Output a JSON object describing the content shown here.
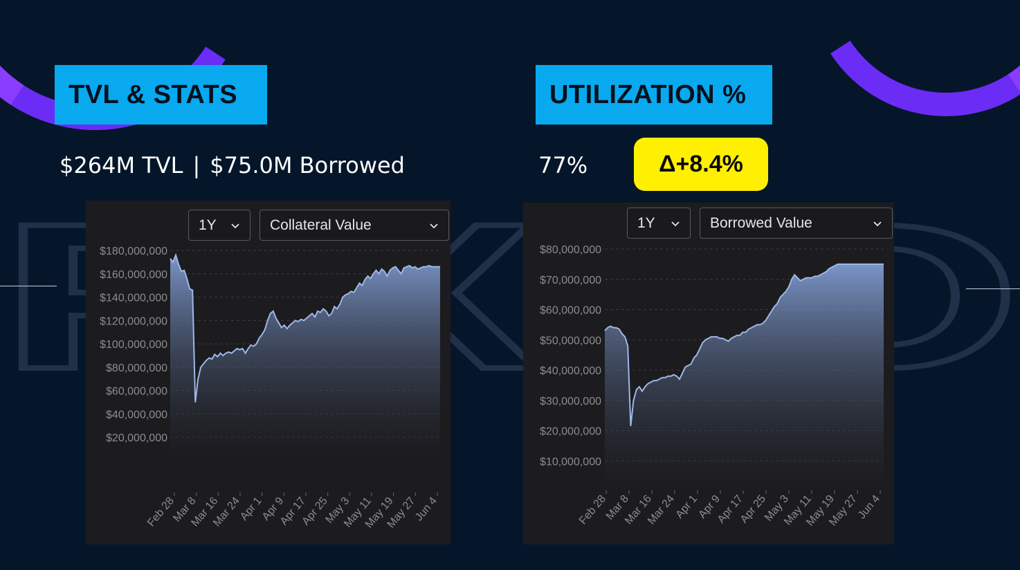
{
  "headers": {
    "left": "TVL & STATS",
    "right": "UTILIZATION %"
  },
  "stats": {
    "tvl": "$264M TVL",
    "separator": "|",
    "borrowed": "$75.0M Borrowed",
    "utilization": "77%",
    "delta": "Δ+8.4%"
  },
  "background_text": "FIXED",
  "colors": {
    "background": "#06162a",
    "header_box": "#08a9ef",
    "delta_badge": "#ffef00",
    "arc": "#8a3dff",
    "panel": "#1c1c1f",
    "line": "#9fb8e8"
  },
  "chart_data": [
    {
      "type": "area",
      "controls": {
        "range": "1Y",
        "metric": "Collateral Value"
      },
      "x_ticks": [
        "Feb 28",
        "Mar 8",
        "Mar 16",
        "Mar 24",
        "Apr 1",
        "Apr 9",
        "Apr 17",
        "Apr 25",
        "May 3",
        "May 11",
        "May 19",
        "May 27",
        "Jun 4"
      ],
      "y_ticks": [
        "$180,000,000",
        "$160,000,000",
        "$140,000,000",
        "$120,000,000",
        "$100,000,000",
        "$80,000,000",
        "$60,000,000",
        "$40,000,000",
        "$20,000,000"
      ],
      "ylim": [
        0,
        180000000
      ],
      "grid": true,
      "series": [
        {
          "x": [
            0,
            1,
            2,
            3,
            4,
            5,
            6,
            7,
            8,
            9,
            10,
            11,
            12,
            13,
            14,
            15,
            16,
            17,
            18,
            19,
            20,
            21,
            22,
            23,
            24,
            25,
            26,
            27,
            28,
            29,
            30,
            31,
            32,
            33,
            34,
            35,
            36,
            37,
            38,
            39,
            40,
            41,
            42,
            43,
            44,
            45,
            46,
            47,
            48,
            49,
            50,
            51,
            52,
            53,
            54,
            55,
            56,
            57,
            58,
            59,
            60,
            61,
            62,
            63,
            64,
            65,
            66,
            67,
            68,
            69,
            70,
            71,
            72,
            73,
            74,
            75,
            76,
            77,
            78,
            79,
            80,
            81,
            82,
            83,
            84,
            85,
            86,
            87,
            88,
            89,
            90,
            91,
            92,
            93,
            94,
            95,
            96,
            97
          ],
          "values": [
            173000000,
            170000000,
            176000000,
            168000000,
            162000000,
            163000000,
            156000000,
            147000000,
            146000000,
            50000000,
            70000000,
            80000000,
            83000000,
            86000000,
            88000000,
            87000000,
            91000000,
            89000000,
            92000000,
            90000000,
            92000000,
            93000000,
            92000000,
            94000000,
            96000000,
            95000000,
            96000000,
            92000000,
            96000000,
            99000000,
            98000000,
            100000000,
            105000000,
            108000000,
            112000000,
            120000000,
            126000000,
            128000000,
            122000000,
            118000000,
            114000000,
            116000000,
            113000000,
            116000000,
            118000000,
            120000000,
            119000000,
            121000000,
            120000000,
            122000000,
            124000000,
            126000000,
            123000000,
            128000000,
            127000000,
            130000000,
            128000000,
            124000000,
            126000000,
            132000000,
            130000000,
            134000000,
            140000000,
            142000000,
            143000000,
            145000000,
            144000000,
            148000000,
            152000000,
            150000000,
            155000000,
            158000000,
            156000000,
            160000000,
            163000000,
            160000000,
            164000000,
            162000000,
            158000000,
            163000000,
            165000000,
            166000000,
            163000000,
            160000000,
            165000000,
            166000000,
            167000000,
            165000000,
            166000000,
            164000000,
            165000000,
            166000000,
            166000000,
            167000000,
            166000000,
            166000000,
            166000000,
            166000000
          ]
        }
      ]
    },
    {
      "type": "area",
      "controls": {
        "range": "1Y",
        "metric": "Borrowed Value"
      },
      "x_ticks": [
        "Feb 28",
        "Mar 8",
        "Mar 16",
        "Mar 24",
        "Apr 1",
        "Apr 9",
        "Apr 17",
        "Apr 25",
        "May 3",
        "May 11",
        "May 19",
        "May 27",
        "Jun 4"
      ],
      "y_ticks": [
        "$80,000,000",
        "$70,000,000",
        "$60,000,000",
        "$50,000,000",
        "$40,000,000",
        "$30,000,000",
        "$20,000,000",
        "$10,000,000"
      ],
      "ylim": [
        0,
        80000000
      ],
      "grid": true,
      "series": [
        {
          "x": [
            0,
            1,
            2,
            3,
            4,
            5,
            6,
            7,
            8,
            9,
            10,
            11,
            12,
            13,
            14,
            15,
            16,
            17,
            18,
            19,
            20,
            21,
            22,
            23,
            24,
            25,
            26,
            27,
            28,
            29,
            30,
            31,
            32,
            33,
            34,
            35,
            36,
            37,
            38,
            39,
            40,
            41,
            42,
            43,
            44,
            45,
            46,
            47,
            48,
            49,
            50,
            51,
            52,
            53,
            54,
            55,
            56,
            57,
            58,
            59,
            60,
            61,
            62,
            63,
            64,
            65,
            66,
            67,
            68,
            69,
            70,
            71,
            72,
            73,
            74,
            75,
            76,
            77,
            78,
            79,
            80,
            81,
            82,
            83,
            84,
            85,
            86,
            87,
            88,
            89,
            90,
            91,
            92,
            93,
            94,
            95,
            96,
            97
          ],
          "values": [
            53000000,
            54000000,
            54500000,
            54000000,
            54000000,
            53500000,
            52000000,
            51000000,
            48000000,
            21500000,
            30000000,
            33500000,
            34500000,
            33000000,
            34500000,
            35500000,
            36000000,
            36500000,
            36500000,
            37000000,
            37500000,
            37500000,
            38000000,
            38000000,
            38500000,
            38000000,
            37000000,
            39000000,
            41000000,
            41500000,
            42000000,
            44000000,
            45000000,
            47000000,
            49000000,
            50000000,
            50500000,
            51000000,
            51000000,
            51000000,
            50500000,
            50500000,
            50000000,
            49500000,
            50500000,
            51000000,
            51500000,
            51500000,
            52500000,
            52500000,
            53500000,
            54000000,
            54500000,
            55000000,
            55000000,
            55500000,
            56500000,
            58000000,
            59500000,
            61000000,
            62000000,
            64000000,
            65000000,
            66000000,
            67500000,
            70000000,
            71500000,
            70500000,
            69500000,
            70000000,
            70500000,
            70500000,
            70500000,
            71000000,
            71000000,
            71500000,
            72000000,
            72500000,
            73500000,
            74000000,
            74500000,
            75000000,
            75000000,
            75000000,
            75000000,
            75000000,
            75000000,
            75000000,
            75000000,
            75000000,
            75000000,
            75000000,
            75000000,
            75000000,
            75000000,
            75000000,
            75000000,
            75000000
          ]
        }
      ]
    }
  ]
}
